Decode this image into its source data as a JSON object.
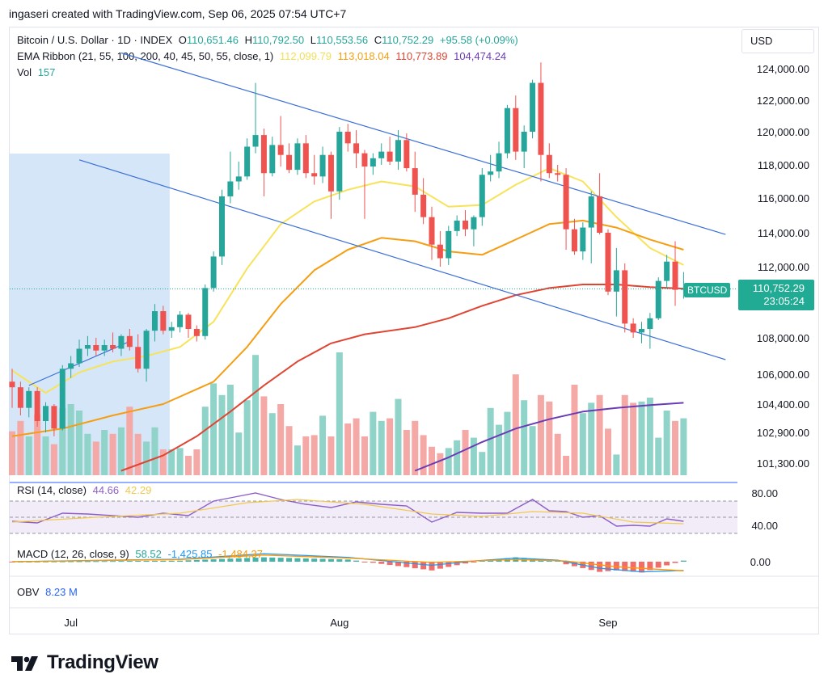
{
  "credit": "ingaseri created with TradingView.com, Sep 06, 2025 07:54 UTC+7",
  "legend": {
    "title": "Bitcoin / U.S. Dollar · 1D · INDEX",
    "o_label": "O",
    "o_value": "110,651.46",
    "h_label": "H",
    "h_value": "110,792.50",
    "l_label": "L",
    "l_value": "110,553.56",
    "c_label": "C",
    "c_value": "110,752.29",
    "change": "+95.58 (+0.09%)",
    "ema_label": "EMA Ribbon (21, 55, 100, 200, 40, 45, 50, 55, close, 1)",
    "ema_values": [
      "112,099.79",
      "113,018.04",
      "110,773.89",
      "104,474.24"
    ],
    "vol_label": "Vol",
    "vol_value": "157"
  },
  "currency": "USD",
  "last_price": {
    "symbol": "BTCUSD",
    "price": "110,752.29",
    "countdown": "23:05:24"
  },
  "panes": {
    "rsi": {
      "label": "RSI (14, close)",
      "value1": "44.66",
      "value2": "42.29",
      "upper_tick": "80.00",
      "lower_tick": "40.00"
    },
    "macd": {
      "label": "MACD (12, 26, close, 9)",
      "value1": "58.52",
      "value2": "-1,425.85",
      "value3": "-1,484.37",
      "zero_tick": "0.00"
    },
    "obv": {
      "label": "OBV",
      "value": "8.23 M"
    }
  },
  "brand": "TradingView",
  "colors": {
    "up": "#26a69a",
    "down": "#ef5350",
    "ema21": "#f7e35a",
    "ema55": "#f59e12",
    "ema100": "#e04533",
    "ema200": "#6a3bb5",
    "trend": "#3b6fd8",
    "rsi": "#8e5ec8",
    "macd": "#2196f3",
    "signal": "#ff9800"
  },
  "chart_data": {
    "type": "candlestick",
    "interval": "1D",
    "y_axis_ticks": [
      "124,000.00",
      "122,000.00",
      "120,000.00",
      "118,000.00",
      "116,000.00",
      "114,000.00",
      "112,000.00",
      "108,000.00",
      "106,000.00",
      "104,400.00",
      "102,900.00",
      "101,300.00"
    ],
    "y_tick_values": [
      124000,
      122000,
      120000,
      118000,
      116000,
      114000,
      112000,
      108000,
      106000,
      104400,
      102900,
      101300
    ],
    "x_axis_labels": [
      "Jul",
      "Aug",
      "Sep"
    ],
    "x_label_index": [
      7,
      39,
      71
    ],
    "ohlc": [
      [
        105600,
        106300,
        104200,
        105300
      ],
      [
        105300,
        105600,
        103800,
        104200
      ],
      [
        104200,
        105300,
        103700,
        105100
      ],
      [
        105100,
        105300,
        103200,
        103500
      ],
      [
        103500,
        104500,
        102900,
        104300
      ],
      [
        104300,
        104400,
        102700,
        103100
      ],
      [
        103100,
        106500,
        103000,
        106300
      ],
      [
        106300,
        107000,
        105800,
        106600
      ],
      [
        106600,
        107900,
        106400,
        107400
      ],
      [
        107400,
        108100,
        107000,
        107600
      ],
      [
        107600,
        108000,
        107000,
        107300
      ],
      [
        107300,
        107900,
        107000,
        107600
      ],
      [
        107600,
        108300,
        107200,
        107400
      ],
      [
        107400,
        108200,
        107000,
        108100
      ],
      [
        108100,
        108500,
        107300,
        107500
      ],
      [
        107500,
        108200,
        106100,
        106300
      ],
      [
        106300,
        108500,
        105600,
        108400
      ],
      [
        108400,
        109900,
        107800,
        109500
      ],
      [
        109500,
        109800,
        108200,
        108400
      ],
      [
        108400,
        108900,
        108000,
        108600
      ],
      [
        108600,
        109500,
        108300,
        109300
      ],
      [
        109300,
        109400,
        108000,
        108500
      ],
      [
        108500,
        108700,
        107800,
        108100
      ],
      [
        108100,
        111000,
        107900,
        110800
      ],
      [
        110800,
        112900,
        110600,
        112600
      ],
      [
        112600,
        116500,
        112100,
        116100
      ],
      [
        116100,
        118800,
        115700,
        117000
      ],
      [
        117000,
        118200,
        116500,
        117300
      ],
      [
        117300,
        119600,
        117100,
        119100
      ],
      [
        119100,
        123100,
        118700,
        119800
      ],
      [
        119800,
        120200,
        116100,
        117500
      ],
      [
        117500,
        119700,
        117300,
        119200
      ],
      [
        119200,
        121000,
        117900,
        118600
      ],
      [
        118600,
        119300,
        117500,
        117700
      ],
      [
        117700,
        119600,
        117400,
        119300
      ],
      [
        119300,
        119800,
        117200,
        117500
      ],
      [
        117500,
        118600,
        116800,
        117300
      ],
      [
        117300,
        119100,
        116900,
        118600
      ],
      [
        118600,
        118800,
        114800,
        116400
      ],
      [
        116400,
        120300,
        115900,
        120000
      ],
      [
        120000,
        120500,
        118800,
        119300
      ],
      [
        119300,
        120100,
        117800,
        118700
      ],
      [
        118700,
        118900,
        114800,
        117900
      ],
      [
        117900,
        118700,
        117400,
        118400
      ],
      [
        118400,
        119300,
        118000,
        118800
      ],
      [
        118800,
        119700,
        118000,
        118200
      ],
      [
        118200,
        120100,
        117700,
        119500
      ],
      [
        119500,
        119900,
        117600,
        117800
      ],
      [
        117800,
        118800,
        115200,
        116200
      ],
      [
        116200,
        117200,
        114500,
        114900
      ],
      [
        114900,
        115500,
        112400,
        113300
      ],
      [
        113300,
        114100,
        112000,
        112500
      ],
      [
        112500,
        114400,
        112100,
        114100
      ],
      [
        114100,
        115000,
        113800,
        114700
      ],
      [
        114700,
        115300,
        113800,
        114200
      ],
      [
        114200,
        115000,
        113200,
        114900
      ],
      [
        114900,
        117800,
        114400,
        117400
      ],
      [
        117400,
        118600,
        117000,
        117600
      ],
      [
        117600,
        119400,
        117200,
        118700
      ],
      [
        118700,
        121700,
        118400,
        121500
      ],
      [
        121500,
        122300,
        118300,
        118800
      ],
      [
        118800,
        120400,
        117800,
        120000
      ],
      [
        120000,
        123300,
        119600,
        123100
      ],
      [
        123100,
        124400,
        117000,
        118600
      ],
      [
        118600,
        119300,
        117200,
        117500
      ],
      [
        117500,
        118000,
        117000,
        117400
      ],
      [
        117400,
        117800,
        113000,
        114200
      ],
      [
        114200,
        114800,
        112700,
        112900
      ],
      [
        112900,
        114600,
        112400,
        114300
      ],
      [
        114300,
        116400,
        112200,
        116100
      ],
      [
        116100,
        117500,
        113900,
        114000
      ],
      [
        114000,
        114200,
        110400,
        110600
      ],
      [
        110600,
        113100,
        109200,
        111800
      ],
      [
        111800,
        112200,
        108300,
        108800
      ],
      [
        108800,
        109100,
        108000,
        108300
      ],
      [
        108300,
        108900,
        107700,
        108500
      ],
      [
        108500,
        109400,
        107400,
        109100
      ],
      [
        109100,
        111400,
        109000,
        111200
      ],
      [
        111200,
        112700,
        110800,
        112300
      ],
      [
        112300,
        113500,
        109800,
        110700
      ],
      [
        110700,
        111700,
        110200,
        110750
      ]
    ],
    "volume": [
      0.34,
      0.42,
      0.3,
      0.47,
      0.3,
      0.24,
      0.52,
      0.55,
      0.5,
      0.32,
      0.26,
      0.35,
      0.32,
      0.37,
      0.53,
      0.32,
      0.26,
      0.37,
      0.2,
      0.2,
      0.21,
      0.15,
      0.2,
      0.53,
      0.71,
      0.62,
      0.7,
      0.33,
      0.58,
      0.93,
      0.61,
      0.48,
      0.55,
      0.38,
      0.23,
      0.3,
      0.31,
      0.46,
      0.3,
      0.95,
      0.4,
      0.44,
      0.3,
      0.49,
      0.42,
      0.44,
      0.59,
      0.35,
      0.42,
      0.31,
      0.22,
      0.17,
      0.21,
      0.27,
      0.35,
      0.29,
      0.18,
      0.52,
      0.39,
      0.49,
      0.78,
      0.58,
      0.38,
      0.62,
      0.57,
      0.32,
      0.15,
      0.7,
      0.48,
      0.56,
      0.62,
      0.36,
      0.16,
      0.62,
      0.56,
      0.57,
      0.6,
      0.29,
      0.5,
      0.42,
      0.44
    ],
    "ema": [
      {
        "name": "EMA 21",
        "color_key": "ema21",
        "points": [
          [
            0,
            106200
          ],
          [
            4,
            105000
          ],
          [
            8,
            106100
          ],
          [
            12,
            106700
          ],
          [
            16,
            107000
          ],
          [
            20,
            107500
          ],
          [
            24,
            108900
          ],
          [
            28,
            111900
          ],
          [
            32,
            114500
          ],
          [
            36,
            115800
          ],
          [
            40,
            116500
          ],
          [
            44,
            117000
          ],
          [
            48,
            116700
          ],
          [
            52,
            115500
          ],
          [
            56,
            115600
          ],
          [
            60,
            116800
          ],
          [
            64,
            117800
          ],
          [
            68,
            117000
          ],
          [
            72,
            114900
          ],
          [
            76,
            113100
          ],
          [
            80,
            112100
          ]
        ]
      },
      {
        "name": "EMA 55",
        "color_key": "ema55",
        "points": [
          [
            0,
            102700
          ],
          [
            6,
            103100
          ],
          [
            12,
            103800
          ],
          [
            18,
            104400
          ],
          [
            24,
            105600
          ],
          [
            28,
            107500
          ],
          [
            32,
            109900
          ],
          [
            36,
            111800
          ],
          [
            40,
            113000
          ],
          [
            44,
            113700
          ],
          [
            48,
            113500
          ],
          [
            52,
            112900
          ],
          [
            56,
            112700
          ],
          [
            60,
            113600
          ],
          [
            64,
            114500
          ],
          [
            68,
            114700
          ],
          [
            72,
            114300
          ],
          [
            76,
            113600
          ],
          [
            80,
            113000
          ]
        ]
      },
      {
        "name": "EMA 100",
        "color_key": "ema100",
        "points": [
          [
            13,
            100900
          ],
          [
            18,
            101700
          ],
          [
            22,
            102700
          ],
          [
            26,
            104000
          ],
          [
            30,
            105400
          ],
          [
            34,
            106700
          ],
          [
            38,
            107700
          ],
          [
            42,
            108200
          ],
          [
            48,
            108600
          ],
          [
            52,
            109100
          ],
          [
            56,
            109800
          ],
          [
            60,
            110400
          ],
          [
            64,
            110800
          ],
          [
            68,
            111000
          ],
          [
            72,
            111000
          ],
          [
            76,
            110850
          ],
          [
            80,
            110770
          ]
        ]
      },
      {
        "name": "EMA 200",
        "color_key": "ema200",
        "points": [
          [
            48,
            100900
          ],
          [
            52,
            101600
          ],
          [
            56,
            102400
          ],
          [
            60,
            103100
          ],
          [
            64,
            103600
          ],
          [
            68,
            104000
          ],
          [
            72,
            104200
          ],
          [
            76,
            104350
          ],
          [
            80,
            104470
          ]
        ]
      }
    ],
    "trendlines": [
      {
        "from": [
          13,
          125000
        ],
        "to": [
          85,
          113900
        ]
      },
      {
        "from": [
          8,
          118300
        ],
        "to": [
          85,
          106800
        ]
      },
      {
        "from": [
          2,
          105400
        ],
        "to": [
          14,
          107800
        ]
      }
    ],
    "shaded_range": {
      "from_index": 0,
      "to_index": 18
    },
    "rsi": {
      "ylim": [
        20,
        100
      ],
      "rsi_points": [
        [
          0,
          45
        ],
        [
          3,
          43
        ],
        [
          6,
          55
        ],
        [
          9,
          54
        ],
        [
          12,
          52
        ],
        [
          15,
          50
        ],
        [
          18,
          55
        ],
        [
          21,
          52
        ],
        [
          24,
          70
        ],
        [
          27,
          76
        ],
        [
          29,
          80
        ],
        [
          32,
          72
        ],
        [
          35,
          66
        ],
        [
          38,
          62
        ],
        [
          41,
          69
        ],
        [
          44,
          66
        ],
        [
          47,
          64
        ],
        [
          50,
          44
        ],
        [
          53,
          56
        ],
        [
          56,
          55
        ],
        [
          59,
          55
        ],
        [
          62,
          72
        ],
        [
          64,
          58
        ],
        [
          66,
          57
        ],
        [
          68,
          50
        ],
        [
          70,
          52
        ],
        [
          72,
          39
        ],
        [
          74,
          40
        ],
        [
          76,
          39
        ],
        [
          78,
          48
        ],
        [
          80,
          45
        ]
      ],
      "ma_points": [
        [
          0,
          44
        ],
        [
          10,
          50
        ],
        [
          20,
          55
        ],
        [
          28,
          68
        ],
        [
          34,
          72
        ],
        [
          42,
          66
        ],
        [
          50,
          54
        ],
        [
          56,
          51
        ],
        [
          62,
          57
        ],
        [
          68,
          55
        ],
        [
          74,
          44
        ],
        [
          80,
          42
        ]
      ]
    },
    "macd": {
      "macd_points": [
        [
          0,
          0.0
        ],
        [
          20,
          0.35
        ],
        [
          30,
          1.1
        ],
        [
          40,
          0.6
        ],
        [
          50,
          -0.5
        ],
        [
          55,
          0.1
        ],
        [
          60,
          0.5
        ],
        [
          65,
          0.2
        ],
        [
          70,
          -0.9
        ],
        [
          75,
          -1.4
        ],
        [
          80,
          -1.2
        ]
      ],
      "signal_points": [
        [
          0,
          0.0
        ],
        [
          20,
          0.3
        ],
        [
          30,
          0.9
        ],
        [
          40,
          0.5
        ],
        [
          50,
          -0.1
        ],
        [
          60,
          0.3
        ],
        [
          66,
          0.1
        ],
        [
          72,
          -0.7
        ],
        [
          80,
          -1.25
        ]
      ]
    }
  }
}
